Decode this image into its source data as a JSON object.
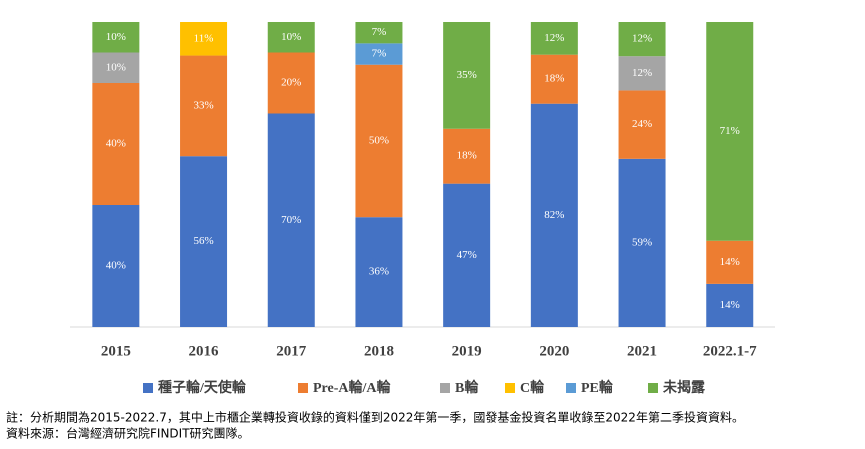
{
  "chart_data": {
    "type": "bar",
    "stacked": true,
    "categories": [
      "2015",
      "2016",
      "2017",
      "2018",
      "2019",
      "2020",
      "2021",
      "2022.1-7"
    ],
    "series": [
      {
        "name": "種子輪/天使輪",
        "color": "#4472c4",
        "values": [
          40,
          56,
          70,
          36,
          47,
          82,
          59,
          14
        ],
        "value_labels": [
          "40%",
          "56%",
          "70%",
          "36%",
          "47%",
          "82%",
          "59%",
          "14%"
        ]
      },
      {
        "name": "Pre-A輪/A輪",
        "color": "#ed7d31",
        "values": [
          40,
          33,
          20,
          50,
          18,
          18,
          24,
          14
        ],
        "value_labels": [
          "40%",
          "33%",
          "20%",
          "50%",
          "18%",
          "18%",
          "24%",
          "14%"
        ]
      },
      {
        "name": "B輪",
        "color": "#a5a5a5",
        "values": [
          10,
          null,
          null,
          null,
          null,
          null,
          12,
          null
        ],
        "value_labels": [
          "10%",
          null,
          null,
          null,
          null,
          null,
          "12%",
          null
        ]
      },
      {
        "name": "C輪",
        "color": "#ffc000",
        "values": [
          null,
          11,
          null,
          null,
          null,
          null,
          null,
          null
        ],
        "value_labels": [
          null,
          "11%",
          null,
          null,
          null,
          null,
          null,
          null
        ]
      },
      {
        "name": "PE輪",
        "color": "#5b9bd5",
        "values": [
          null,
          null,
          null,
          7,
          null,
          null,
          null,
          null
        ],
        "value_labels": [
          null,
          null,
          null,
          "7%",
          null,
          null,
          null,
          null
        ]
      },
      {
        "name": "未揭露",
        "color": "#70ad47",
        "values": [
          10,
          null,
          10,
          7,
          35,
          12,
          12,
          71
        ],
        "value_labels": [
          "10%",
          null,
          "10%",
          "7%",
          "35%",
          "12%",
          "12%",
          "71%"
        ]
      }
    ],
    "legend": "bottom",
    "notes": [
      "註：分析期間為2015-2022.7，其中上市櫃企業轉投資收錄的資料僅到2022年第一季，國發基金投資名單收錄至2022年第二季投資資料。",
      "資料來源：台灣經濟研究院FINDIT研究團隊。"
    ]
  }
}
